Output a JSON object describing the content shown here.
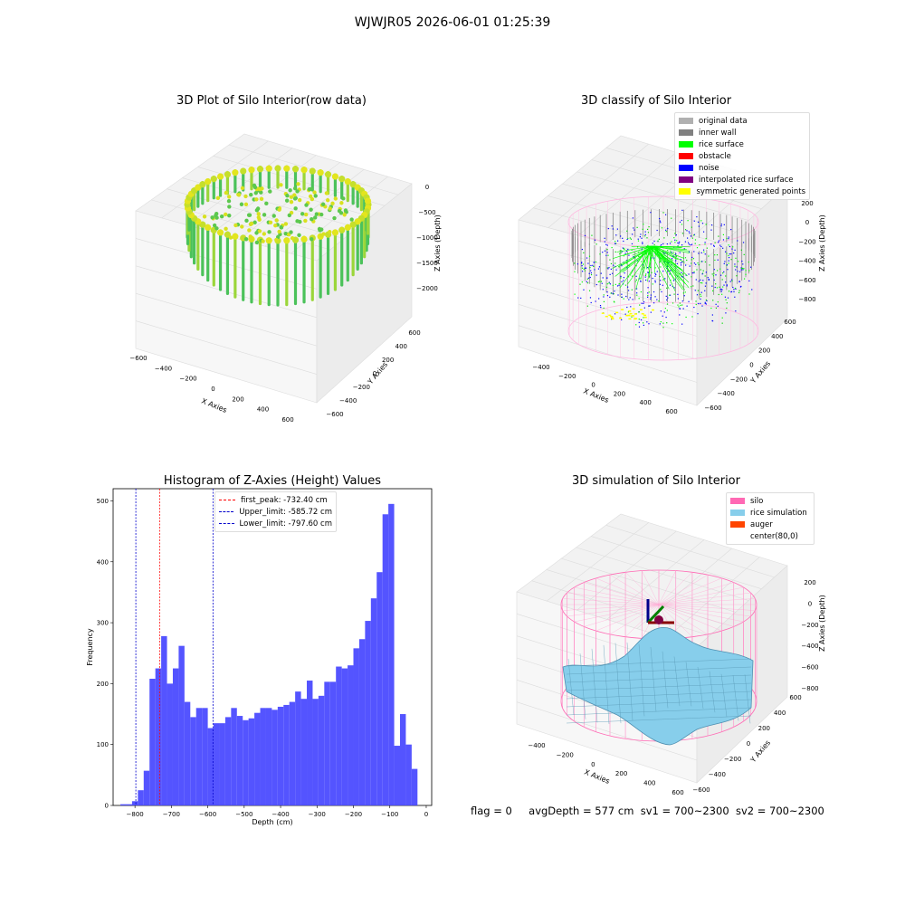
{
  "suptitle": "WJWJR05 2026-06-01 01:25:39",
  "panels": {
    "raw": {
      "title": "3D Plot of Silo Interior(row data)",
      "xlabel": "X Axies",
      "ylabel": "Y Axies",
      "zlabel": "Z Axies (Depth)",
      "xticks": [
        "−600",
        "−400",
        "−200",
        "0",
        "200",
        "400",
        "600"
      ],
      "yticks": [
        "−600",
        "−400",
        "−200",
        "0",
        "200",
        "400",
        "600"
      ],
      "zticks": [
        "0",
        "−500",
        "−1000",
        "−1500",
        "−2000"
      ]
    },
    "classify": {
      "title": "3D classify of Silo Interior",
      "xlabel": "X Axies",
      "ylabel": "Y Axies",
      "zlabel": "Z Axies (Depth)",
      "xticks": [
        "−400",
        "−200",
        "0",
        "200",
        "400",
        "600"
      ],
      "yticks": [
        "−600",
        "−400",
        "−200",
        "0",
        "200",
        "400",
        "600"
      ],
      "zticks": [
        "200",
        "0",
        "−200",
        "−400",
        "−600",
        "−800"
      ],
      "legend": [
        {
          "label": "original data",
          "color": "#b0b0b0"
        },
        {
          "label": "inner wall",
          "color": "#808080"
        },
        {
          "label": "rice surface",
          "color": "#00ff00"
        },
        {
          "label": "obstacle",
          "color": "#ff0000"
        },
        {
          "label": "noise",
          "color": "#0000ff"
        },
        {
          "label": "interpolated rice surface",
          "color": "#800080"
        },
        {
          "label": "symmetric generated points",
          "color": "#ffff00"
        }
      ]
    },
    "simulation": {
      "title": "3D simulation of Silo Interior",
      "xlabel": "X Axies",
      "ylabel": "Y Axies",
      "zlabel": "Z Axies (Depth)",
      "xticks": [
        "−400",
        "−200",
        "0",
        "200",
        "400",
        "600"
      ],
      "yticks": [
        "−600",
        "−400",
        "−200",
        "0",
        "200",
        "400",
        "600"
      ],
      "zticks": [
        "200",
        "0",
        "−200",
        "−400",
        "−600",
        "−800"
      ],
      "legend": [
        {
          "label": "silo",
          "color": "#ff69b4"
        },
        {
          "label": "rice simulation",
          "color": "#87ceeb"
        },
        {
          "label": "auger",
          "color": "#ff4500"
        },
        {
          "label": "center(80,0)",
          "color": ""
        }
      ]
    }
  },
  "chart_data": {
    "type": "bar",
    "title": "Histogram of Z-Axies (Height) Values",
    "xlabel": "Depth (cm)",
    "ylabel": "Frequency",
    "xlim": [
      -860,
      15
    ],
    "ylim": [
      0,
      520
    ],
    "xticks": [
      -800,
      -700,
      -600,
      -500,
      -400,
      -300,
      -200,
      -100,
      0
    ],
    "yticks": [
      0,
      100,
      200,
      300,
      400,
      500
    ],
    "bar_color": "#4b4bff",
    "bin_width": 16,
    "bins": [
      {
        "x": -840,
        "y": 2
      },
      {
        "x": -824,
        "y": 2
      },
      {
        "x": -808,
        "y": 7
      },
      {
        "x": -792,
        "y": 25
      },
      {
        "x": -776,
        "y": 57
      },
      {
        "x": -760,
        "y": 208
      },
      {
        "x": -744,
        "y": 225
      },
      {
        "x": -728,
        "y": 278
      },
      {
        "x": -712,
        "y": 200
      },
      {
        "x": -696,
        "y": 225
      },
      {
        "x": -680,
        "y": 262
      },
      {
        "x": -664,
        "y": 170
      },
      {
        "x": -648,
        "y": 145
      },
      {
        "x": -632,
        "y": 160
      },
      {
        "x": -616,
        "y": 160
      },
      {
        "x": -600,
        "y": 127
      },
      {
        "x": -584,
        "y": 135
      },
      {
        "x": -568,
        "y": 135
      },
      {
        "x": -552,
        "y": 145
      },
      {
        "x": -536,
        "y": 160
      },
      {
        "x": -520,
        "y": 147
      },
      {
        "x": -504,
        "y": 140
      },
      {
        "x": -488,
        "y": 143
      },
      {
        "x": -472,
        "y": 152
      },
      {
        "x": -456,
        "y": 160
      },
      {
        "x": -440,
        "y": 160
      },
      {
        "x": -424,
        "y": 157
      },
      {
        "x": -408,
        "y": 162
      },
      {
        "x": -392,
        "y": 165
      },
      {
        "x": -376,
        "y": 170
      },
      {
        "x": -360,
        "y": 187
      },
      {
        "x": -344,
        "y": 175
      },
      {
        "x": -328,
        "y": 205
      },
      {
        "x": -312,
        "y": 175
      },
      {
        "x": -296,
        "y": 180
      },
      {
        "x": -280,
        "y": 203
      },
      {
        "x": -264,
        "y": 203
      },
      {
        "x": -248,
        "y": 228
      },
      {
        "x": -232,
        "y": 225
      },
      {
        "x": -216,
        "y": 230
      },
      {
        "x": -200,
        "y": 258
      },
      {
        "x": -184,
        "y": 273
      },
      {
        "x": -168,
        "y": 303
      },
      {
        "x": -152,
        "y": 340
      },
      {
        "x": -136,
        "y": 383
      },
      {
        "x": -120,
        "y": 478
      },
      {
        "x": -104,
        "y": 495
      },
      {
        "x": -88,
        "y": 98
      },
      {
        "x": -72,
        "y": 150
      },
      {
        "x": -56,
        "y": 100
      },
      {
        "x": -40,
        "y": 60
      }
    ],
    "vlines": [
      {
        "label": "first_peak: -732.40 cm",
        "x": -732.4,
        "color": "#ff0000"
      },
      {
        "label": "Upper_limit: -585.72 cm",
        "x": -585.72,
        "color": "#0000cc"
      },
      {
        "label": "Lower_limit: -797.60 cm",
        "x": -797.6,
        "color": "#0000cc"
      }
    ]
  },
  "footer": {
    "flag": "flag = 0",
    "avg_depth": "avgDepth = 577 cm",
    "sv1": "sv1 = 700~2300",
    "sv2": "sv2 = 700~2300"
  }
}
